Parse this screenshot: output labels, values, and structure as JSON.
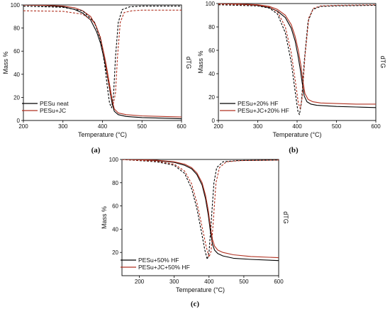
{
  "chart_data": [
    {
      "panel": "(a)",
      "type": "line",
      "xlabel": "Temperature (°C)",
      "ylabel": "Mass %",
      "y2label": "dTG",
      "xlim": [
        200,
        600
      ],
      "ylim": [
        0,
        100
      ],
      "xticks": [
        200,
        300,
        400,
        500,
        600
      ],
      "yticks": [
        0,
        20,
        40,
        60,
        80,
        100
      ],
      "legend_position": "bottom-left",
      "series": [
        {
          "name": "PESu neat",
          "color": "#000000",
          "style": "solid",
          "x": [
            200,
            250,
            300,
            330,
            350,
            370,
            385,
            395,
            405,
            410,
            415,
            420,
            425,
            430,
            440,
            460,
            500,
            550,
            600
          ],
          "y": [
            100,
            99.5,
            98.5,
            96,
            93,
            87,
            77,
            67,
            52,
            43,
            33,
            23,
            14,
            8,
            5,
            3.5,
            2.5,
            2,
            1.5
          ]
        },
        {
          "name": "PESu+JC",
          "color": "#b03020",
          "style": "solid",
          "x": [
            200,
            250,
            300,
            330,
            350,
            370,
            385,
            395,
            405,
            410,
            415,
            420,
            425,
            430,
            440,
            460,
            500,
            550,
            600
          ],
          "y": [
            100,
            99.7,
            99,
            97.5,
            95,
            90,
            81,
            71,
            56,
            47,
            37,
            27,
            17,
            10,
            6.5,
            5,
            4,
            3.5,
            3
          ]
        },
        {
          "name": "",
          "color": "#000000",
          "style": "dashed",
          "x": [
            200,
            300,
            350,
            380,
            395,
            405,
            412,
            418,
            423,
            428,
            433,
            440,
            450,
            470,
            500,
            600
          ],
          "y": [
            99,
            98,
            95,
            85,
            70,
            50,
            30,
            15,
            11,
            22,
            55,
            85,
            96,
            98.5,
            99,
            99
          ]
        },
        {
          "name": "",
          "color": "#b03020",
          "style": "dashed",
          "x": [
            200,
            300,
            350,
            380,
            395,
            405,
            415,
            422,
            428,
            433,
            438,
            445,
            455,
            475,
            500,
            600
          ],
          "y": [
            95,
            94.5,
            92,
            85,
            72,
            55,
            33,
            20,
            15,
            24,
            55,
            85,
            93.5,
            95,
            95.5,
            95.5
          ]
        }
      ]
    },
    {
      "panel": "(b)",
      "type": "line",
      "xlabel": "Temperature (°C)",
      "ylabel": "Mass %",
      "y2label": "dTG",
      "xlim": [
        200,
        600
      ],
      "ylim": [
        0,
        100
      ],
      "xticks": [
        200,
        300,
        400,
        500,
        600
      ],
      "yticks": [
        0,
        20,
        40,
        60,
        80,
        100
      ],
      "legend_position": "bottom-left",
      "series": [
        {
          "name": "PESu+20% HF",
          "color": "#000000",
          "style": "solid",
          "x": [
            200,
            250,
            300,
            330,
            350,
            370,
            385,
            395,
            402,
            408,
            413,
            418,
            425,
            435,
            450,
            500,
            550,
            600
          ],
          "y": [
            100,
            99.5,
            98.5,
            96.5,
            93.5,
            88,
            79,
            68,
            56,
            44,
            32,
            21,
            16,
            14,
            13,
            12,
            11.5,
            11
          ]
        },
        {
          "name": "PESu+JC+20% HF",
          "color": "#b03020",
          "style": "solid",
          "x": [
            200,
            250,
            300,
            330,
            350,
            370,
            385,
            395,
            403,
            410,
            415,
            420,
            428,
            440,
            460,
            500,
            550,
            600
          ],
          "y": [
            100,
            99.7,
            99,
            97.5,
            95,
            90,
            82,
            72,
            60,
            46,
            33,
            23,
            18,
            16,
            15,
            14.5,
            14,
            14
          ]
        },
        {
          "name": "",
          "color": "#000000",
          "style": "dashed",
          "x": [
            200,
            300,
            330,
            350,
            370,
            385,
            395,
            402,
            406,
            411,
            418,
            428,
            440,
            460,
            500,
            600
          ],
          "y": [
            99,
            98,
            96,
            91,
            75,
            50,
            25,
            8,
            5,
            15,
            50,
            85,
            95,
            97.5,
            98,
            98.5
          ]
        },
        {
          "name": "",
          "color": "#b03020",
          "style": "dashed",
          "x": [
            200,
            300,
            330,
            350,
            370,
            385,
            395,
            403,
            408,
            413,
            420,
            430,
            442,
            460,
            500,
            600
          ],
          "y": [
            99.5,
            98.5,
            97,
            93,
            80,
            58,
            35,
            15,
            10,
            20,
            55,
            88,
            96,
            98,
            98.5,
            99
          ]
        }
      ]
    },
    {
      "panel": "(c)",
      "type": "line",
      "xlabel": "Temperature (°C)",
      "ylabel": "Mass %",
      "y2label": "dTG",
      "xlim": [
        150,
        600
      ],
      "ylim": [
        0,
        100
      ],
      "xticks": [
        200,
        300,
        400,
        500,
        600
      ],
      "yticks": [
        20,
        40,
        60,
        80,
        100
      ],
      "legend_position": "bottom-left",
      "series": [
        {
          "name": "PESu+50% HF",
          "color": "#000000",
          "style": "solid",
          "x": [
            150,
            200,
            250,
            300,
            330,
            350,
            365,
            380,
            390,
            398,
            404,
            410,
            416,
            425,
            440,
            470,
            520,
            600
          ],
          "y": [
            100,
            99.8,
            99,
            97.5,
            95,
            92,
            87,
            78,
            66,
            52,
            38,
            27,
            22,
            19,
            17,
            15,
            14,
            13
          ]
        },
        {
          "name": "PESu+JC+50% HF",
          "color": "#b03020",
          "style": "solid",
          "x": [
            150,
            200,
            250,
            300,
            330,
            350,
            365,
            380,
            390,
            398,
            404,
            410,
            416,
            425,
            440,
            470,
            520,
            600
          ],
          "y": [
            100,
            99.9,
            99.3,
            98,
            96,
            93,
            88.5,
            80,
            69,
            56,
            42,
            31,
            25.5,
            22,
            20,
            18,
            16.5,
            15.5
          ]
        },
        {
          "name": "",
          "color": "#000000",
          "style": "dashed",
          "x": [
            150,
            250,
            300,
            330,
            350,
            365,
            378,
            388,
            395,
            400,
            406,
            414,
            422,
            440,
            480,
            600
          ],
          "y": [
            100,
            98,
            95,
            88,
            75,
            58,
            38,
            22,
            14,
            20,
            45,
            80,
            93,
            98,
            99,
            99.5
          ]
        },
        {
          "name": "",
          "color": "#b03020",
          "style": "dashed",
          "x": [
            150,
            250,
            300,
            330,
            350,
            365,
            380,
            392,
            400,
            406,
            412,
            420,
            430,
            450,
            490,
            600
          ],
          "y": [
            100,
            98.5,
            96,
            90,
            79,
            63,
            42,
            25,
            16,
            21,
            46,
            80,
            93,
            98,
            99,
            99.5
          ]
        }
      ]
    }
  ]
}
